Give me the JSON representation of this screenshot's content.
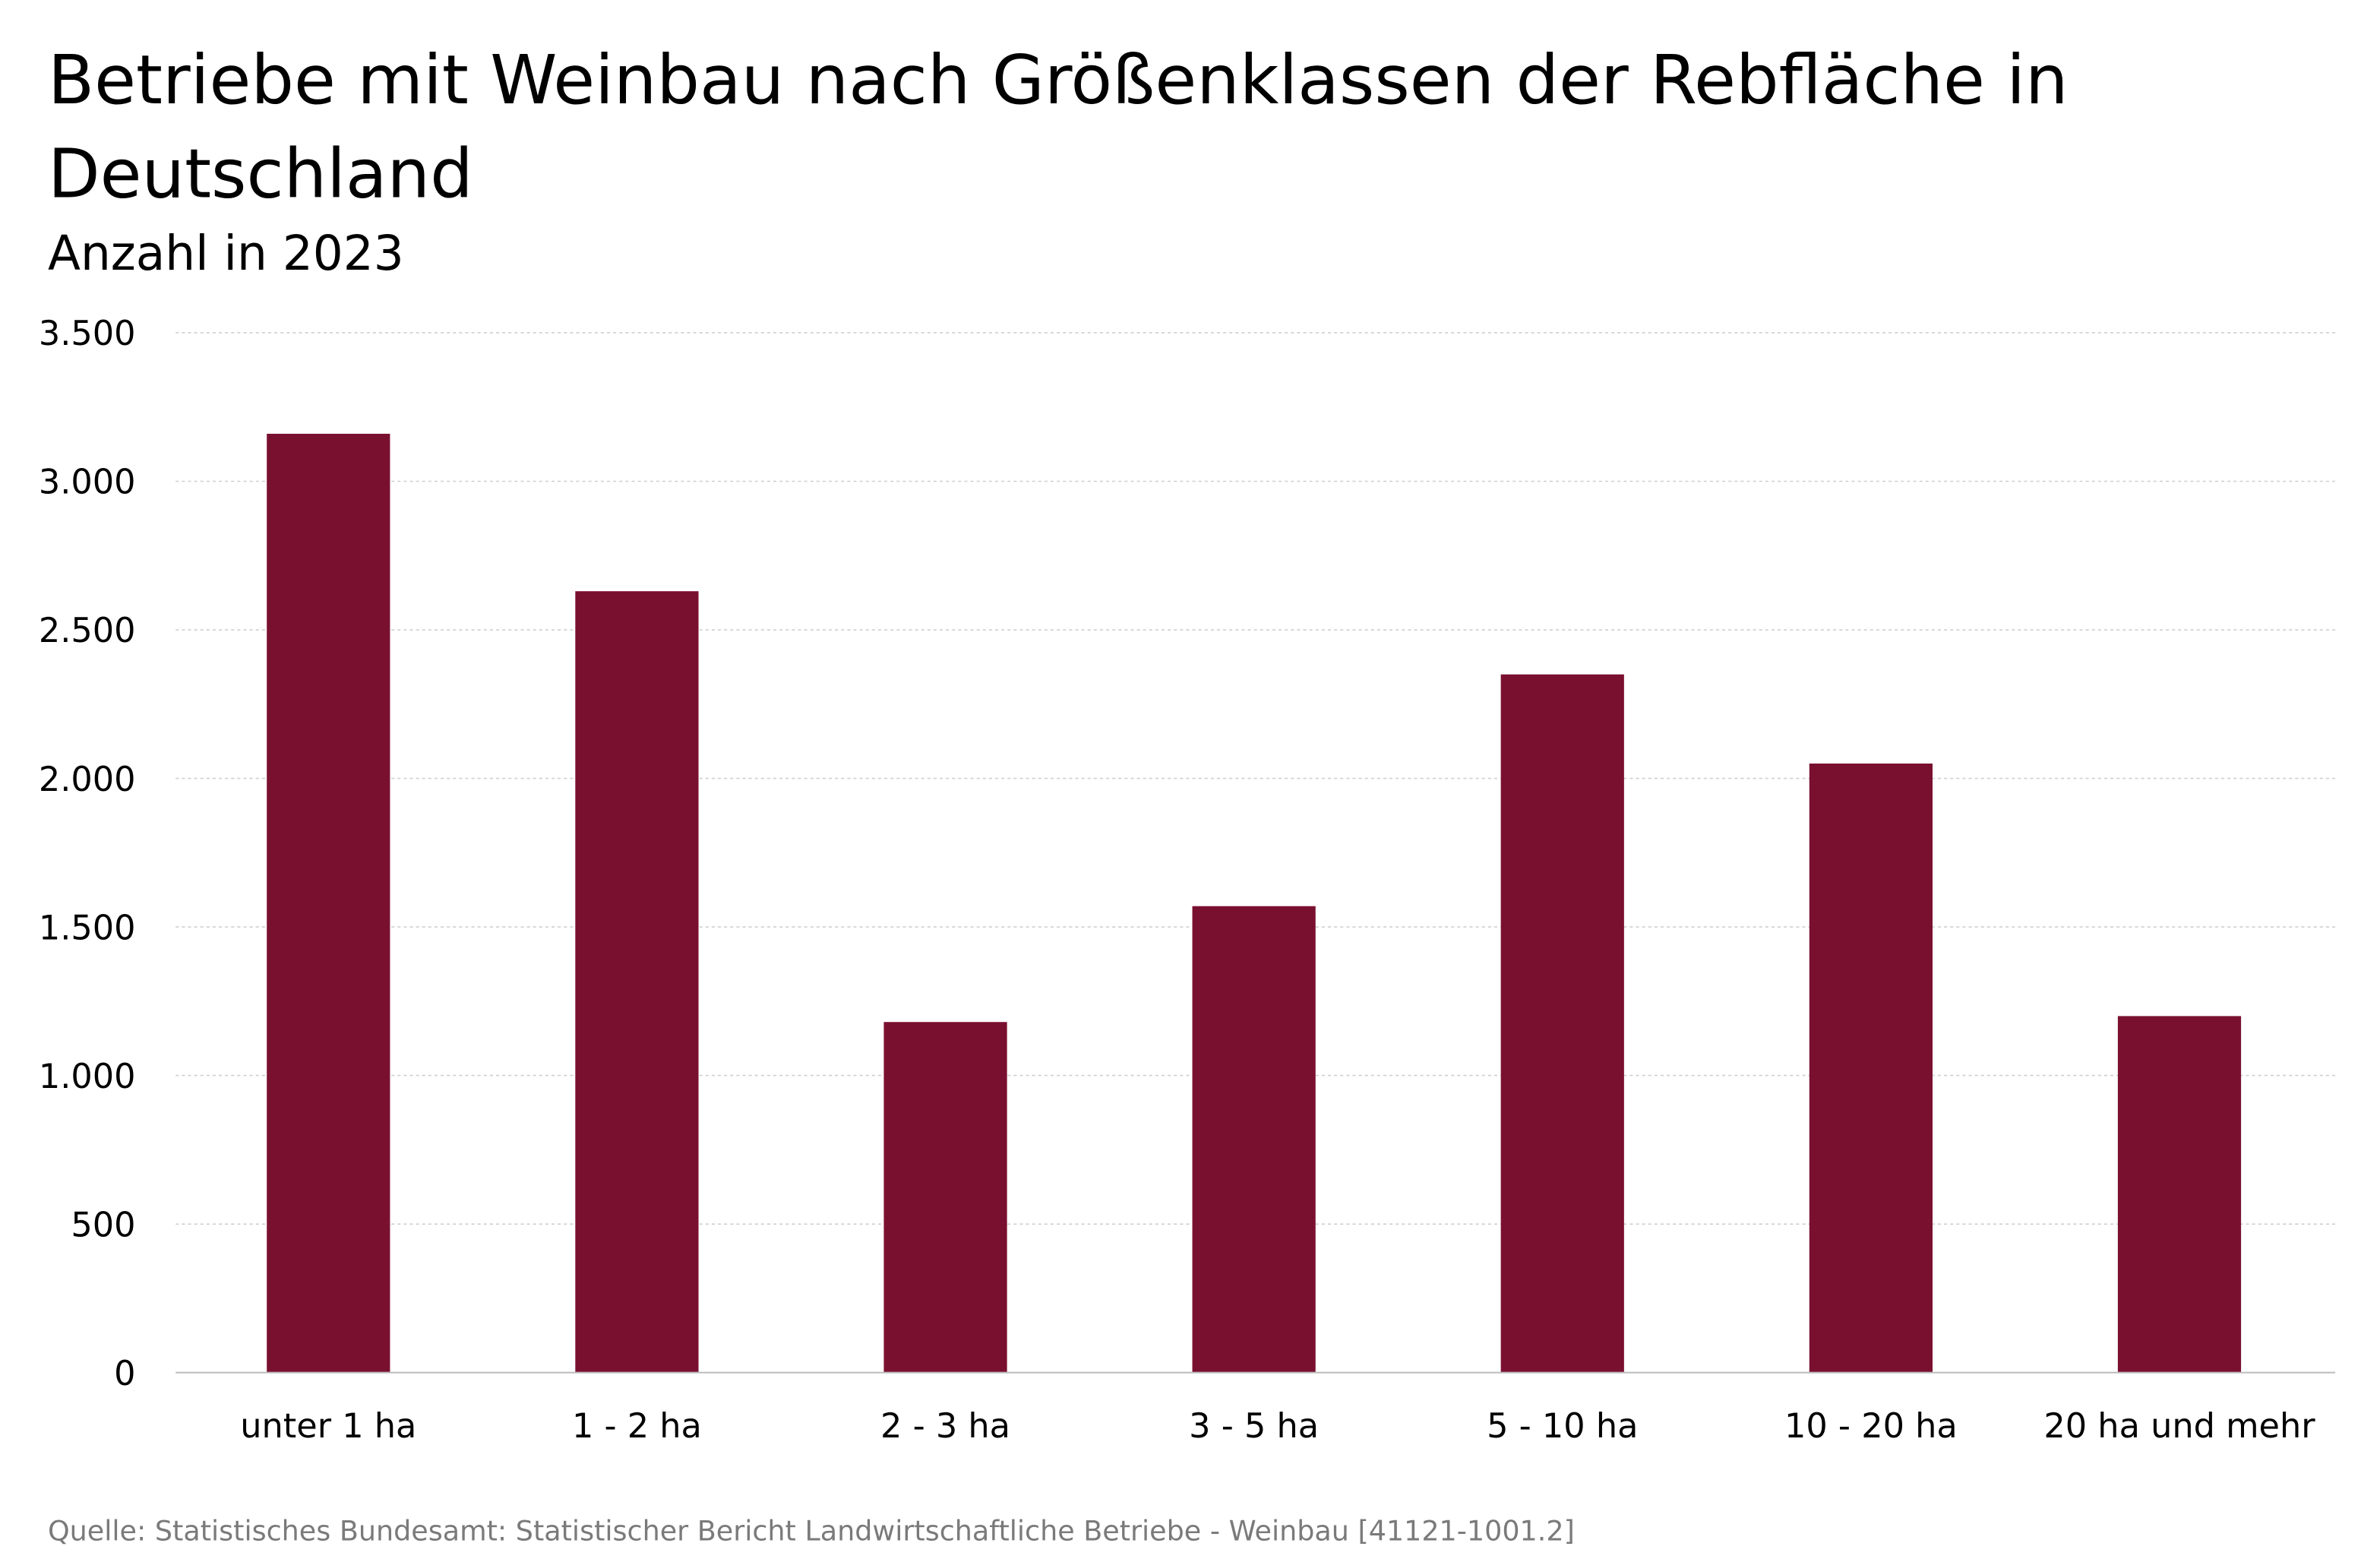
{
  "chart_data": {
    "type": "bar",
    "title": "Betriebe mit Weinbau nach Größenklassen der Rebfläche in Deutschland",
    "title_lines": [
      "Betriebe mit Weinbau nach Größenklassen der Rebfläche in",
      "Deutschland"
    ],
    "subtitle": "Anzahl in 2023",
    "categories": [
      "unter 1 ha",
      "1 - 2 ha",
      "2 - 3 ha",
      "3 - 5 ha",
      "5 - 10 ha",
      "10 - 20 ha",
      "20 ha und mehr"
    ],
    "values": [
      3160,
      2630,
      1180,
      1570,
      2350,
      2050,
      1200
    ],
    "xlabel": "",
    "ylabel": "",
    "ylim": [
      0,
      3500
    ],
    "yticks": [
      0,
      500,
      1000,
      1500,
      2000,
      2500,
      3000,
      3500
    ],
    "ytick_labels": [
      "0",
      "500",
      "1.000",
      "1.500",
      "2.000",
      "2.500",
      "3.000",
      "3.500"
    ],
    "grid": true,
    "legend": "none",
    "bar_color": "#7a1030",
    "source": "Quelle: Statistisches Bundesamt: Statistischer Bericht Landwirtschaftliche Betriebe - Weinbau [41121-1001.2]"
  }
}
